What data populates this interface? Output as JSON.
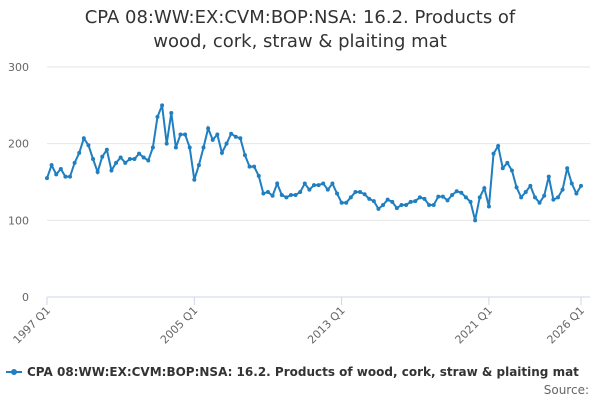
{
  "chart_data": {
    "type": "line",
    "title": "CPA 08:WW:EX:CVM:BOP:NSA: 16.2. Products of wood, cork, straw & plaiting mat",
    "source": "Source:",
    "categories": [
      "1997 Q1",
      null,
      null,
      null,
      null,
      null,
      null,
      null,
      null,
      null,
      null,
      null,
      null,
      null,
      null,
      null,
      null,
      null,
      null,
      null,
      null,
      null,
      null,
      null,
      null,
      null,
      null,
      null,
      null,
      null,
      null,
      null,
      "2005 Q1",
      null,
      null,
      null,
      null,
      null,
      null,
      null,
      null,
      null,
      null,
      null,
      null,
      null,
      null,
      null,
      null,
      null,
      null,
      null,
      null,
      null,
      null,
      null,
      null,
      null,
      null,
      null,
      null,
      null,
      null,
      null,
      "2013 Q1",
      null,
      null,
      null,
      null,
      null,
      null,
      null,
      null,
      null,
      null,
      null,
      null,
      null,
      null,
      null,
      null,
      null,
      null,
      null,
      null,
      null,
      null,
      null,
      null,
      null,
      null,
      null,
      null,
      null,
      null,
      null,
      "2021 Q1",
      null,
      null,
      null,
      null,
      null,
      null,
      null,
      null,
      null,
      null,
      null,
      null,
      null,
      null,
      null,
      null,
      null,
      null,
      null,
      "2026 Q1"
    ],
    "series": [
      {
        "name": "CPA 08:WW:EX:CVM:BOP:NSA: 16.2. Products of wood, cork, straw & plaiting mat",
        "color": "#1f7fc0",
        "values": [
          155,
          172,
          160,
          167,
          157,
          157,
          175,
          188,
          207,
          198,
          180,
          163,
          183,
          192,
          165,
          175,
          182,
          175,
          180,
          180,
          187,
          182,
          178,
          195,
          235,
          250,
          200,
          240,
          195,
          212,
          212,
          195,
          153,
          172,
          195,
          220,
          205,
          212,
          188,
          200,
          213,
          209,
          207,
          185,
          170,
          170,
          158,
          135,
          137,
          132,
          148,
          133,
          130,
          133,
          133,
          137,
          148,
          140,
          146,
          146,
          148,
          140,
          148,
          135,
          123,
          123,
          130,
          137,
          137,
          134,
          128,
          125,
          115,
          120,
          127,
          124,
          116,
          120,
          120,
          124,
          125,
          130,
          128,
          120,
          120,
          131,
          131,
          126,
          133,
          138,
          136,
          130,
          124,
          100,
          130,
          142,
          118,
          187,
          197,
          168,
          175,
          165,
          143,
          130,
          137,
          145,
          130,
          123,
          132,
          157,
          127,
          130,
          140,
          168,
          148,
          135,
          145
        ]
      }
    ],
    "ylim": [
      0,
      300
    ],
    "yticks": [
      0,
      100,
      200,
      300
    ],
    "grid": true
  }
}
